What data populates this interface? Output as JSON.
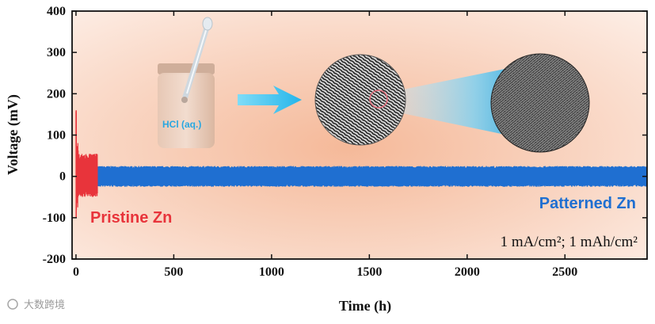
{
  "chart_data": {
    "type": "line",
    "title": "",
    "xlabel": "Time (h)",
    "ylabel": "Voltage (mV)",
    "xlim": [
      -20,
      2920
    ],
    "ylim": [
      -200,
      400
    ],
    "x_ticks": [
      0,
      500,
      1000,
      1500,
      2000,
      2500
    ],
    "y_ticks": [
      -200,
      -100,
      0,
      100,
      200,
      300,
      400
    ],
    "series": [
      {
        "name": "Pristine Zn",
        "color": "#e8343b",
        "time_range_h": [
          0,
          110
        ],
        "spike_max_mv": 160,
        "spike_min_mv": -100,
        "envelope_mv": [
          -50,
          55
        ]
      },
      {
        "name": "Patterned Zn",
        "color": "#1f6fd1",
        "time_range_h": [
          100,
          2920
        ],
        "envelope_mv": [
          -25,
          25
        ]
      }
    ],
    "annotations": {
      "pristine_label": "Pristine Zn",
      "patterned_label": "Patterned Zn",
      "condition": "1 mA/cm²; 1 mAh/cm²",
      "inset_label": "HCl (aq.)"
    }
  },
  "watermark": "大数跨境",
  "colors": {
    "background_center": "#f6c6ae",
    "background_edge": "#fbe3d6",
    "arrow": "#3ec3ee"
  }
}
